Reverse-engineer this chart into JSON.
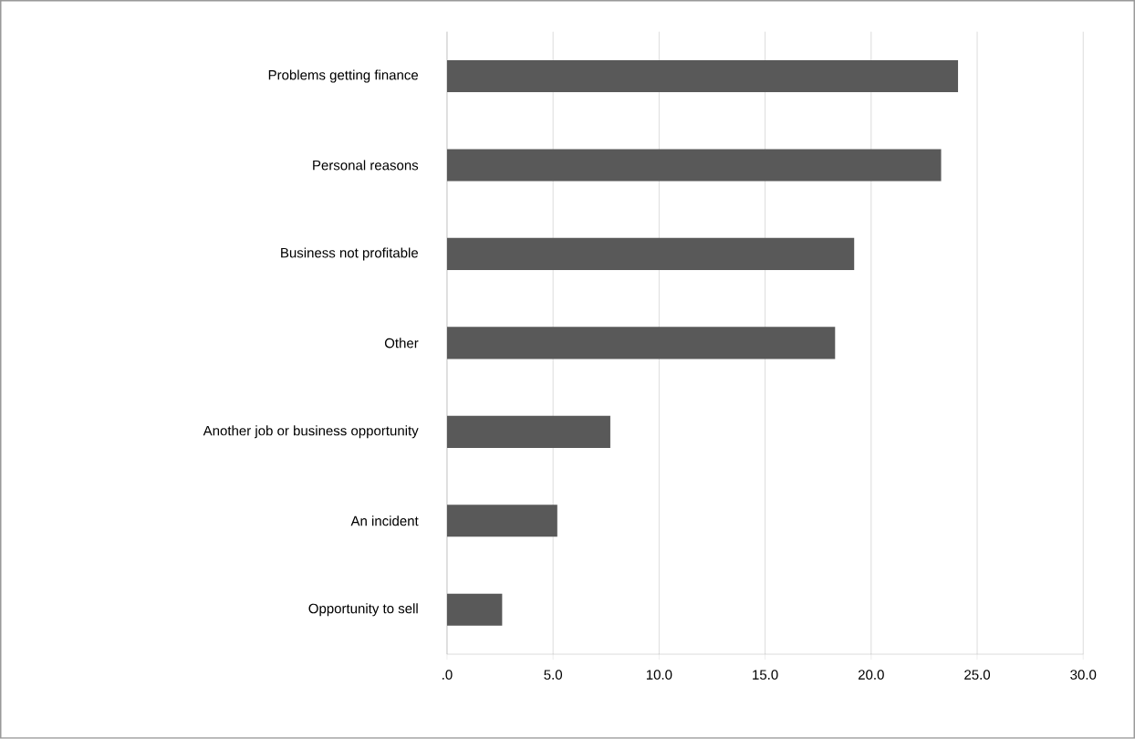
{
  "chart_data": {
    "type": "bar",
    "orientation": "horizontal",
    "categories": [
      "Problems getting finance",
      "Personal reasons",
      "Business not profitable",
      "Other",
      "Another job or business opportunity",
      "An incident",
      "Opportunity to sell"
    ],
    "values": [
      24.1,
      23.3,
      19.2,
      18.3,
      7.7,
      5.2,
      2.6
    ],
    "color": "#595959",
    "xlim": [
      0,
      30
    ],
    "xticks": [
      {
        "value": 0,
        "label": ".0"
      },
      {
        "value": 5,
        "label": "5.0"
      },
      {
        "value": 10,
        "label": "10.0"
      },
      {
        "value": 15,
        "label": "15.0"
      },
      {
        "value": 20,
        "label": "20.0"
      },
      {
        "value": 25,
        "label": "25.0"
      },
      {
        "value": 30,
        "label": "30.0"
      }
    ],
    "grid": "x"
  }
}
